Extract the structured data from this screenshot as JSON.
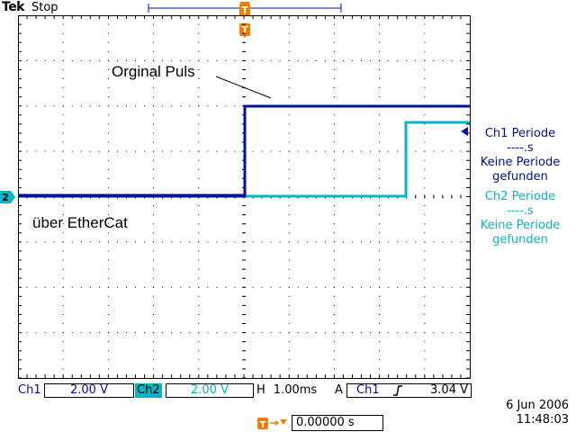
{
  "header": {
    "brand": "Tek",
    "acquisition_status": "Stop"
  },
  "annotations": {
    "original_pulse": "Orginal Puls",
    "ethercat": "über EtherCat"
  },
  "measurements": {
    "ch1": {
      "lines": [
        "Ch1 Periode",
        "----.s",
        "Keine Periode",
        "gefunden"
      ],
      "color": "#00119c"
    },
    "ch2": {
      "lines": [
        "Ch2 Periode",
        "----.s",
        "Keine Periode",
        "gefunden"
      ],
      "color": "#08b5c4"
    }
  },
  "markers": {
    "trigger": "T",
    "ch2_ground": "2"
  },
  "status_bar": {
    "ch1_label": "Ch1",
    "ch1_scale": "2.00 V",
    "ch2_label": "Ch2",
    "ch2_scale": "2.00 V",
    "horizontal_label": "H",
    "horizontal_scale": "1.00ms",
    "trigger_mode": "A",
    "trigger_source": "Ch1",
    "trigger_level": "3.04 V"
  },
  "datetime": {
    "date": "6 Jun  2006",
    "time": "11:48:03"
  },
  "trigger_offset": {
    "value": "0.00000 s"
  },
  "colors": {
    "ch1": "#00119c",
    "ch2": "#08b5c4",
    "trigger": "#f07d00"
  }
}
